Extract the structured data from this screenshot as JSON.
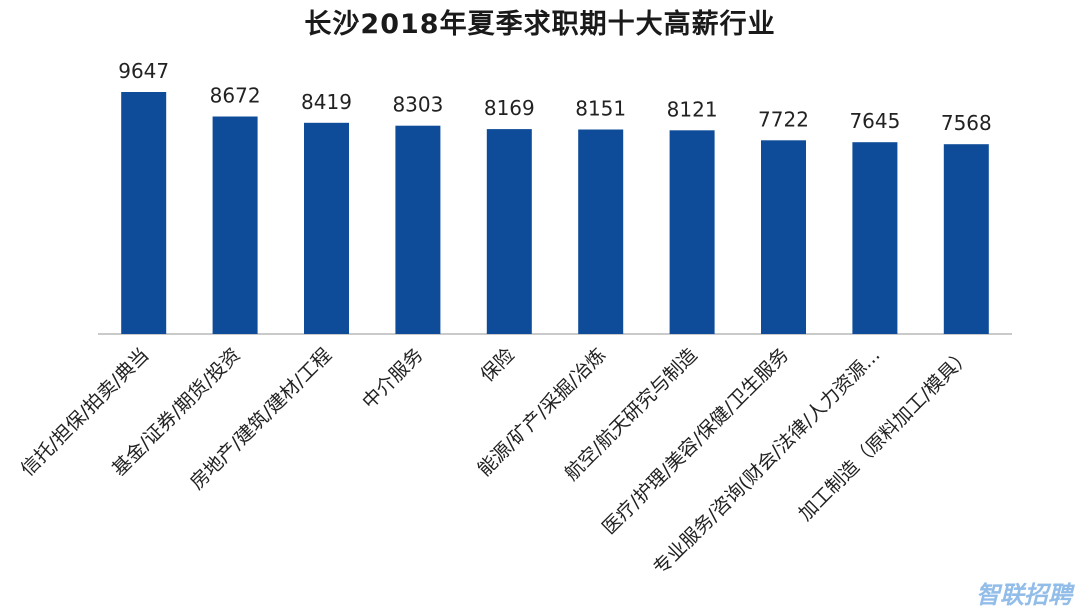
{
  "chart_data": {
    "type": "bar",
    "title": "长沙2018年夏季求职期十大高薪行业",
    "categories": [
      "信托/担保/拍卖/典当",
      "基金/证券/期货/投资",
      "房地产/建筑/建材/工程",
      "中介服务",
      "保险",
      "能源/矿产/采掘/冶炼",
      "航空/航天研究与制造",
      "医疗/护理/美容/保健/卫生服务",
      "专业服务/咨询(财会/法律/人力资源...",
      "加工制造（原料加工/模具）"
    ],
    "values": [
      9647,
      8672,
      8419,
      8303,
      8169,
      8151,
      8121,
      7722,
      7645,
      7568
    ],
    "ylim": [
      0,
      10200
    ],
    "grid": false,
    "legend": "none",
    "bar_color": "#0e4c9a"
  },
  "watermark": "智联招聘"
}
